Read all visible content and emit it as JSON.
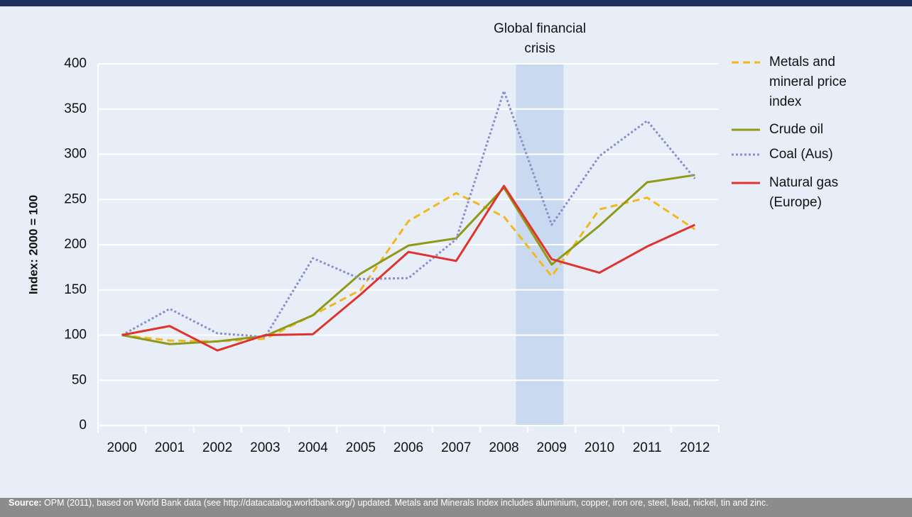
{
  "chart_data": {
    "type": "line",
    "annotation": "Global financial crisis",
    "y_label": "Index: 2000 = 100",
    "categories": [
      "2000",
      "2001",
      "2002",
      "2003",
      "2004",
      "2005",
      "2006",
      "2007",
      "2008",
      "2009",
      "2010",
      "2011",
      "2012"
    ],
    "series": [
      {
        "name": "Metals and mineral price index",
        "color": "#f2b81e",
        "dash": "dashed",
        "values": [
          100,
          94,
          93,
          96,
          122,
          150,
          226,
          257,
          231,
          165,
          239,
          252,
          217
        ]
      },
      {
        "name": "Crude oil",
        "color": "#8f9a16",
        "dash": "solid",
        "values": [
          100,
          90,
          93,
          99,
          122,
          168,
          199,
          207,
          263,
          178,
          221,
          269,
          277
        ]
      },
      {
        "name": "Coal (Aus)",
        "color": "#8a8fca",
        "dash": "dotted",
        "values": [
          100,
          129,
          102,
          98,
          185,
          162,
          163,
          206,
          370,
          222,
          298,
          337,
          273
        ]
      },
      {
        "name": "Natural gas (Europe)",
        "color": "#e0322f",
        "dash": "solid",
        "values": [
          100,
          110,
          83,
          100,
          101,
          145,
          192,
          182,
          265,
          184,
          169,
          198,
          222
        ]
      }
    ],
    "ylim": [
      0,
      400
    ],
    "yticks": [
      0,
      50,
      100,
      150,
      200,
      250,
      300,
      350,
      400
    ],
    "grid": true,
    "source": {
      "label": "Source:",
      "text": "OPM (2011), based on World Bank data (see http://datacatalog.worldbank.org/) updated. Metals and Minerals Index includes aluminium, copper, iron ore, steel, lead, nickel, tin and zinc."
    }
  }
}
